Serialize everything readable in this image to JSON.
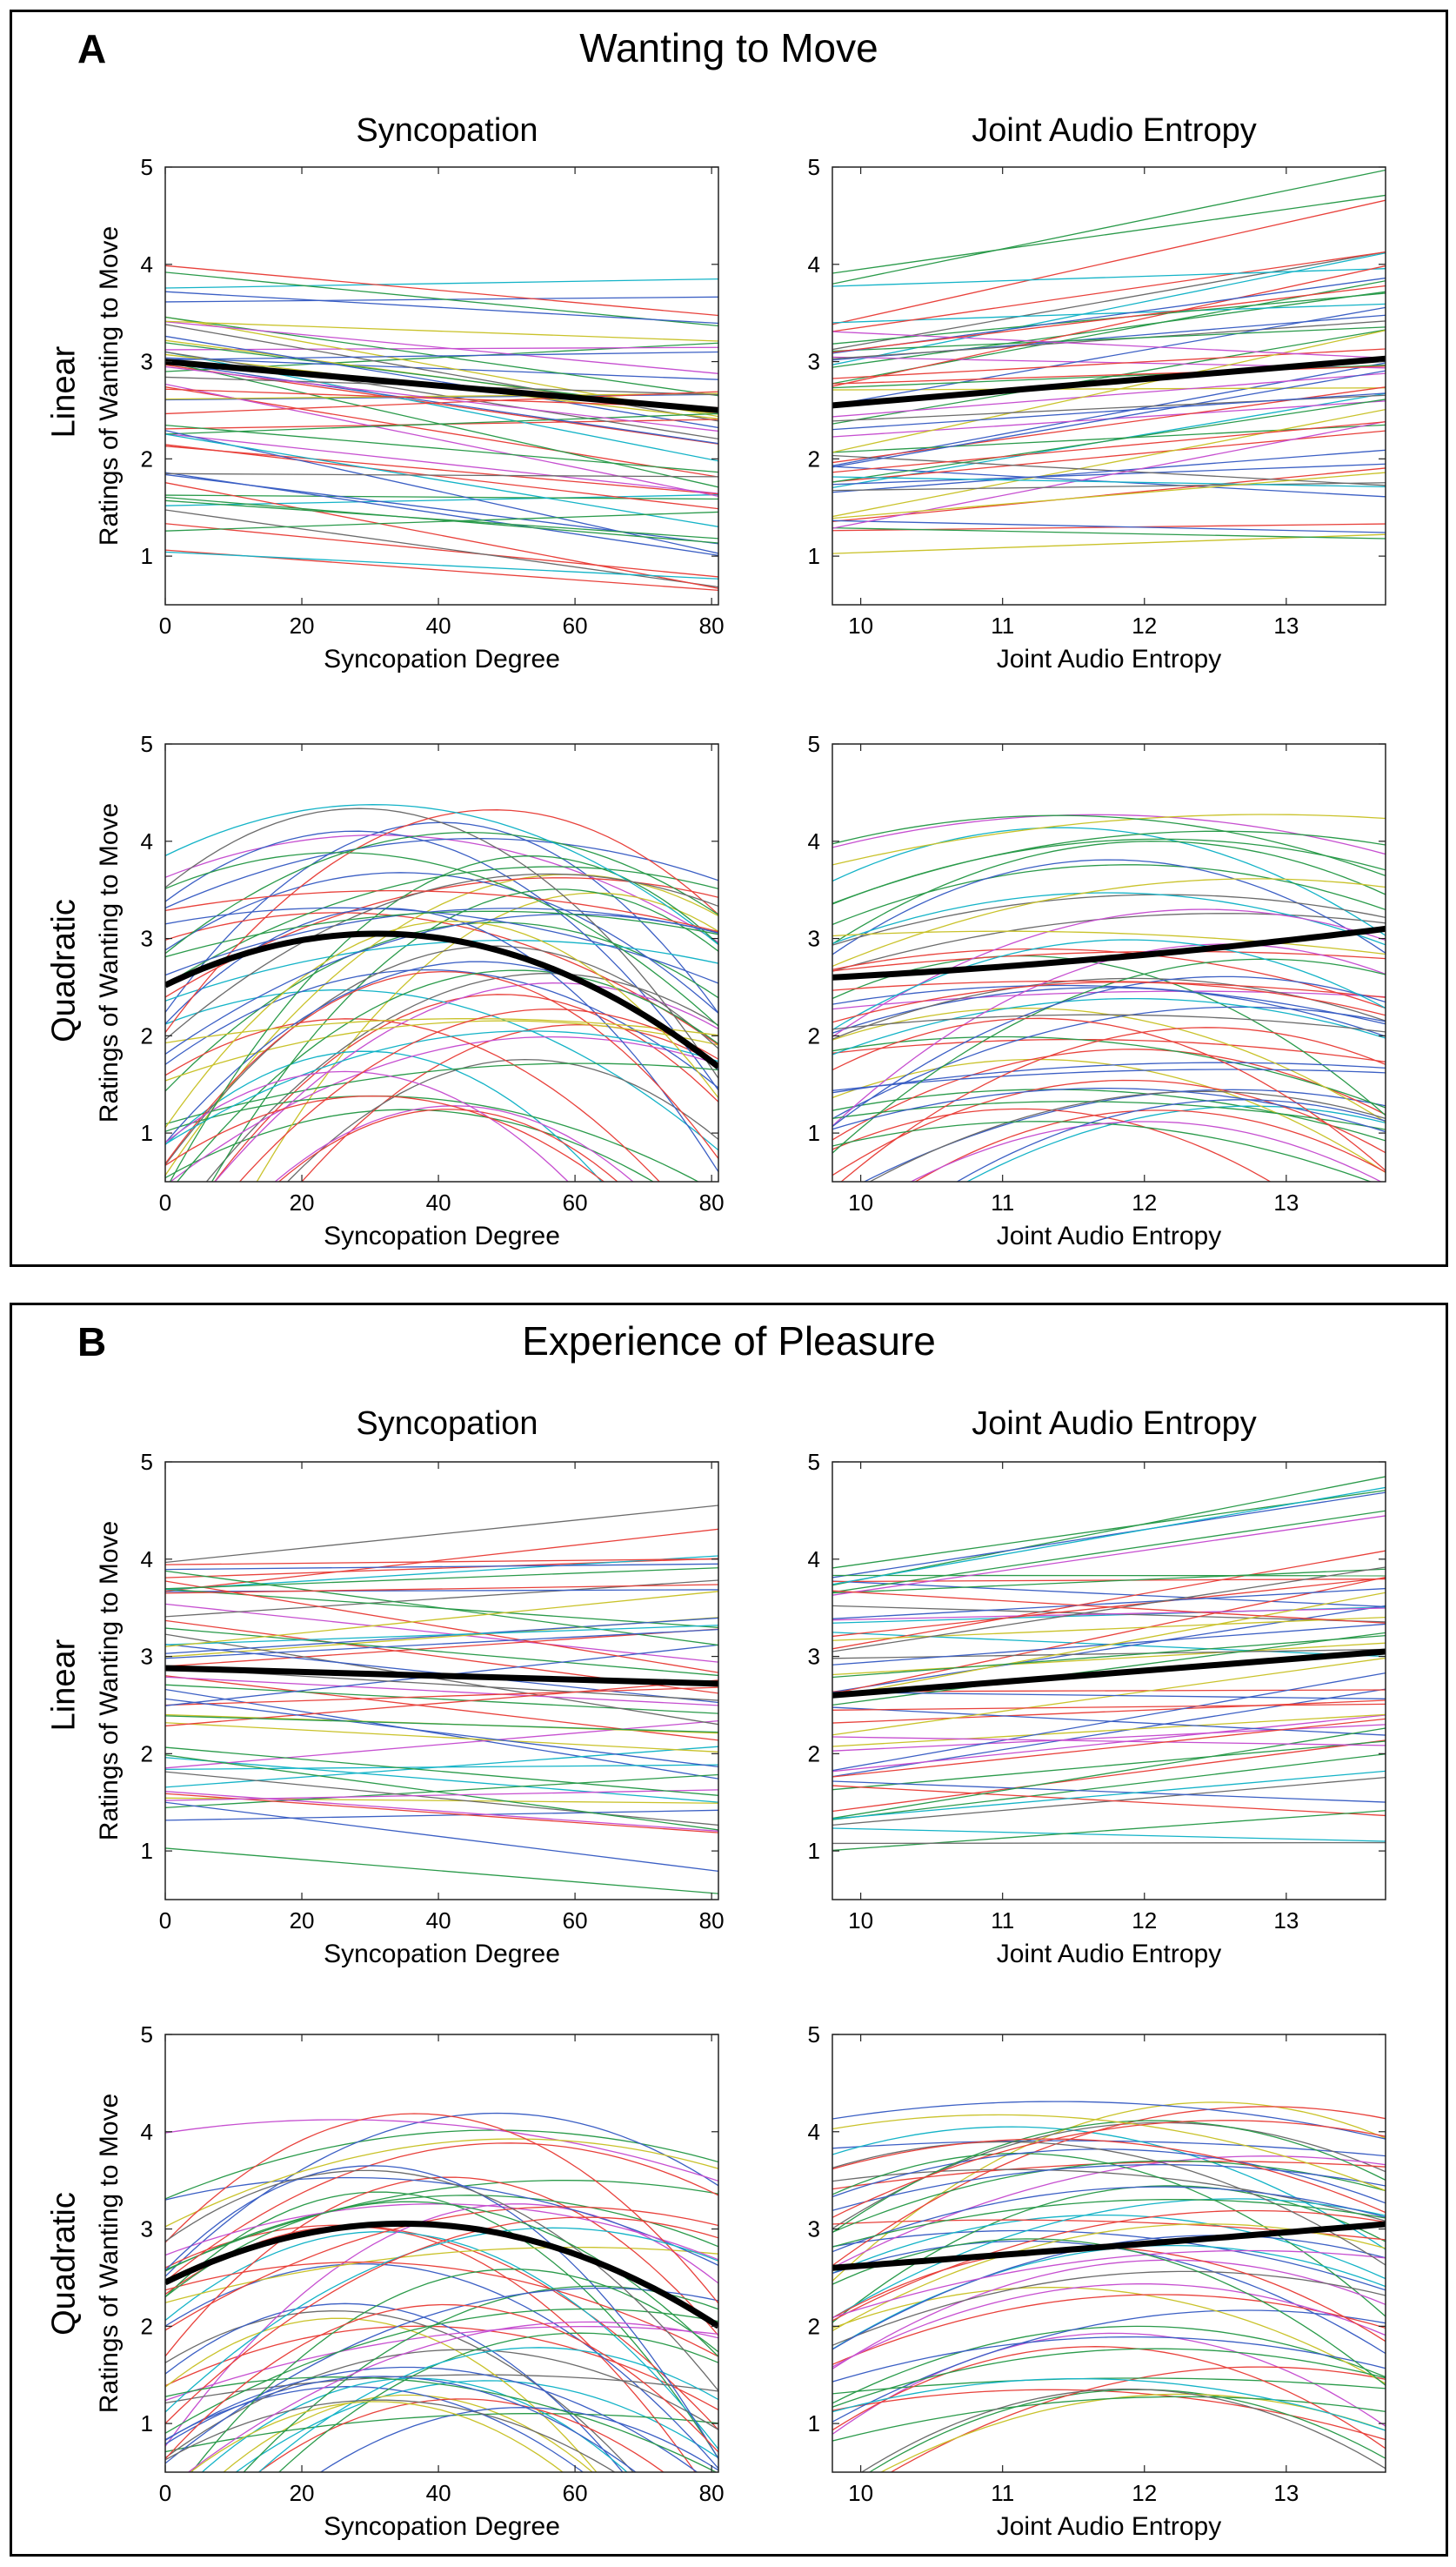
{
  "panels": [
    {
      "letter": "A",
      "title": "Wanting to Move"
    },
    {
      "letter": "B",
      "title": "Experience of Pleasure"
    }
  ],
  "columns": [
    "Syncopation",
    "Joint Audio Entropy"
  ],
  "rows": [
    "Linear",
    "Quadratic"
  ],
  "colors": {
    "mean_line": "#000000",
    "individual": [
      "#e8413b",
      "#2a9a4a",
      "#3b5fc4",
      "#14b3c7",
      "#c64fd0",
      "#c9c22a",
      "#6b6b6b",
      "#e8413b",
      "#2a9a4a",
      "#3b5fc4"
    ]
  },
  "chart_data": [
    {
      "type": "line",
      "panel": "A",
      "row": "Linear",
      "column": "Syncopation",
      "xlabel": "Syncopation Degree",
      "ylabel": "Ratings of Wanting to Move",
      "xlim": [
        0,
        81
      ],
      "ylim": [
        0.5,
        5
      ],
      "xticks": [
        0,
        20,
        40,
        60,
        80
      ],
      "yticks": [
        1,
        2,
        3,
        4,
        5
      ],
      "fit": "linear",
      "mean_endpoints": [
        3.0,
        2.5
      ],
      "individual_lines": 52
    },
    {
      "type": "line",
      "panel": "A",
      "row": "Linear",
      "column": "Joint Audio Entropy",
      "xlabel": "Joint Audio Entropy",
      "ylabel": "",
      "xlim": [
        9.8,
        13.7
      ],
      "ylim": [
        0.5,
        5
      ],
      "xticks": [
        10,
        11,
        12,
        13
      ],
      "yticks": [
        1,
        2,
        3,
        4,
        5
      ],
      "fit": "linear",
      "mean_endpoints": [
        2.55,
        3.03
      ],
      "individual_lines": 52
    },
    {
      "type": "line",
      "panel": "A",
      "row": "Quadratic",
      "column": "Syncopation",
      "xlabel": "Syncopation Degree",
      "ylabel": "Ratings of Wanting to Move",
      "xlim": [
        0,
        81
      ],
      "ylim": [
        0.5,
        5
      ],
      "xticks": [
        0,
        20,
        40,
        60,
        80
      ],
      "yticks": [
        1,
        2,
        3,
        4,
        5
      ],
      "fit": "quadratic",
      "mean_points": [
        [
          0,
          2.52
        ],
        [
          31,
          3.05
        ],
        [
          81,
          1.68
        ]
      ],
      "individual_lines": 52
    },
    {
      "type": "line",
      "panel": "A",
      "row": "Quadratic",
      "column": "Joint Audio Entropy",
      "xlabel": "Joint Audio Entropy",
      "ylabel": "",
      "xlim": [
        9.8,
        13.7
      ],
      "ylim": [
        0.5,
        5
      ],
      "xticks": [
        10,
        11,
        12,
        13
      ],
      "yticks": [
        1,
        2,
        3,
        4,
        5
      ],
      "fit": "quadratic",
      "mean_points": [
        [
          9.8,
          2.6
        ],
        [
          11.75,
          2.8
        ],
        [
          13.7,
          3.1
        ]
      ],
      "individual_lines": 52
    },
    {
      "type": "line",
      "panel": "B",
      "row": "Linear",
      "column": "Syncopation",
      "xlabel": "Syncopation Degree",
      "ylabel": "Ratings of Wanting to Move",
      "xlim": [
        0,
        81
      ],
      "ylim": [
        0.5,
        5
      ],
      "xticks": [
        0,
        20,
        40,
        60,
        80
      ],
      "yticks": [
        1,
        2,
        3,
        4,
        5
      ],
      "fit": "linear",
      "mean_endpoints": [
        2.88,
        2.72
      ],
      "individual_lines": 52
    },
    {
      "type": "line",
      "panel": "B",
      "row": "Linear",
      "column": "Joint Audio Entropy",
      "xlabel": "Joint Audio Entropy",
      "ylabel": "",
      "xlim": [
        9.8,
        13.7
      ],
      "ylim": [
        0.5,
        5
      ],
      "xticks": [
        10,
        11,
        12,
        13
      ],
      "yticks": [
        1,
        2,
        3,
        4,
        5
      ],
      "fit": "linear",
      "mean_endpoints": [
        2.6,
        3.05
      ],
      "individual_lines": 52
    },
    {
      "type": "line",
      "panel": "B",
      "row": "Quadratic",
      "column": "Syncopation",
      "xlabel": "Syncopation Degree",
      "ylabel": "Ratings of Wanting to Move",
      "xlim": [
        0,
        81
      ],
      "ylim": [
        0.5,
        5
      ],
      "xticks": [
        0,
        20,
        40,
        60,
        80
      ],
      "yticks": [
        1,
        2,
        3,
        4,
        5
      ],
      "fit": "quadratic",
      "mean_points": [
        [
          0,
          2.45
        ],
        [
          38,
          3.05
        ],
        [
          81,
          2.0
        ]
      ],
      "individual_lines": 52
    },
    {
      "type": "line",
      "panel": "B",
      "row": "Quadratic",
      "column": "Joint Audio Entropy",
      "xlabel": "Joint Audio Entropy",
      "ylabel": "",
      "xlim": [
        9.8,
        13.7
      ],
      "ylim": [
        0.5,
        5
      ],
      "xticks": [
        10,
        11,
        12,
        13
      ],
      "yticks": [
        1,
        2,
        3,
        4,
        5
      ],
      "fit": "quadratic",
      "mean_points": [
        [
          9.8,
          2.6
        ],
        [
          11.75,
          2.82
        ],
        [
          13.7,
          3.05
        ]
      ],
      "individual_lines": 52
    }
  ]
}
